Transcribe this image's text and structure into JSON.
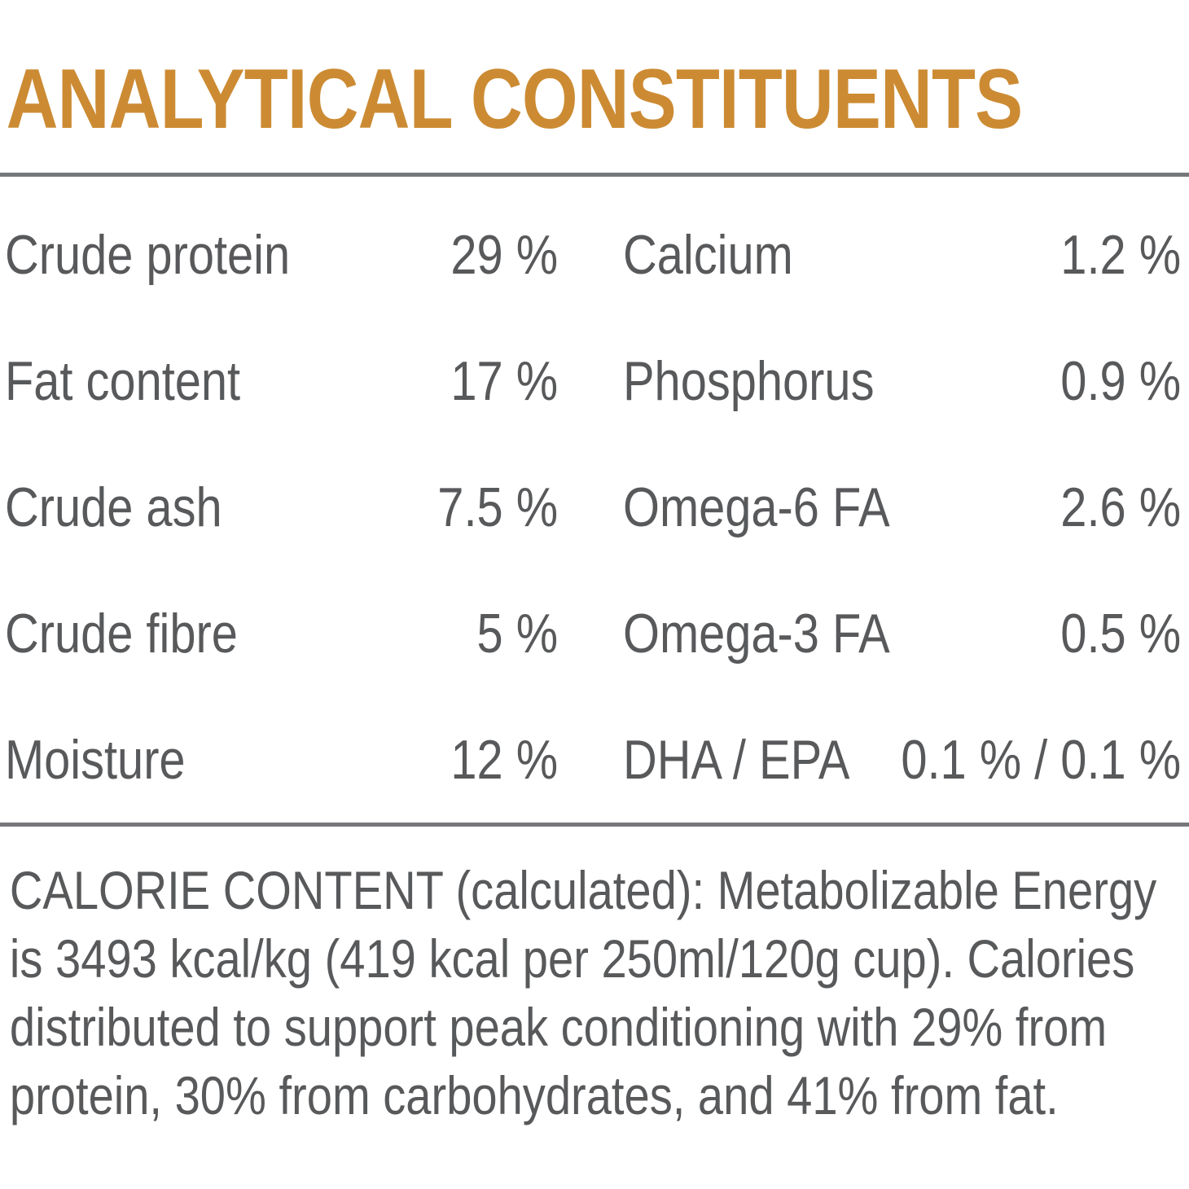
{
  "title": "ANALYTICAL CONSTITUENTS",
  "colors": {
    "accent": "#CC8B33",
    "text_gray": "#58595B",
    "rule_gray": "#76777A",
    "background": "#FFFFFF"
  },
  "table": {
    "left": [
      {
        "label": "Crude protein",
        "value": "29 %"
      },
      {
        "label": "Fat content",
        "value": "17 %"
      },
      {
        "label": "Crude ash",
        "value": "7.5 %"
      },
      {
        "label": "Crude fibre",
        "value": "5 %"
      },
      {
        "label": "Moisture",
        "value": "12 %"
      }
    ],
    "right": [
      {
        "label": "Calcium",
        "value": "1.2 %"
      },
      {
        "label": "Phosphorus",
        "value": "0.9 %"
      },
      {
        "label": "Omega-6 FA",
        "value": "2.6 %"
      },
      {
        "label": "Omega-3 FA",
        "value": "0.5 %"
      },
      {
        "label": "DHA / EPA",
        "value": "0.1 % / 0.1 %"
      }
    ]
  },
  "calorie": {
    "lines": [
      "CALORIE CONTENT (calculated): Metabolizable Energy",
      "is 3493 kcal/kg (419 kcal per 250ml/120g cup). Calories",
      "distributed to support peak conditioning with 29% from",
      "protein, 30% from carbohydrates, and 41% from fat."
    ]
  }
}
